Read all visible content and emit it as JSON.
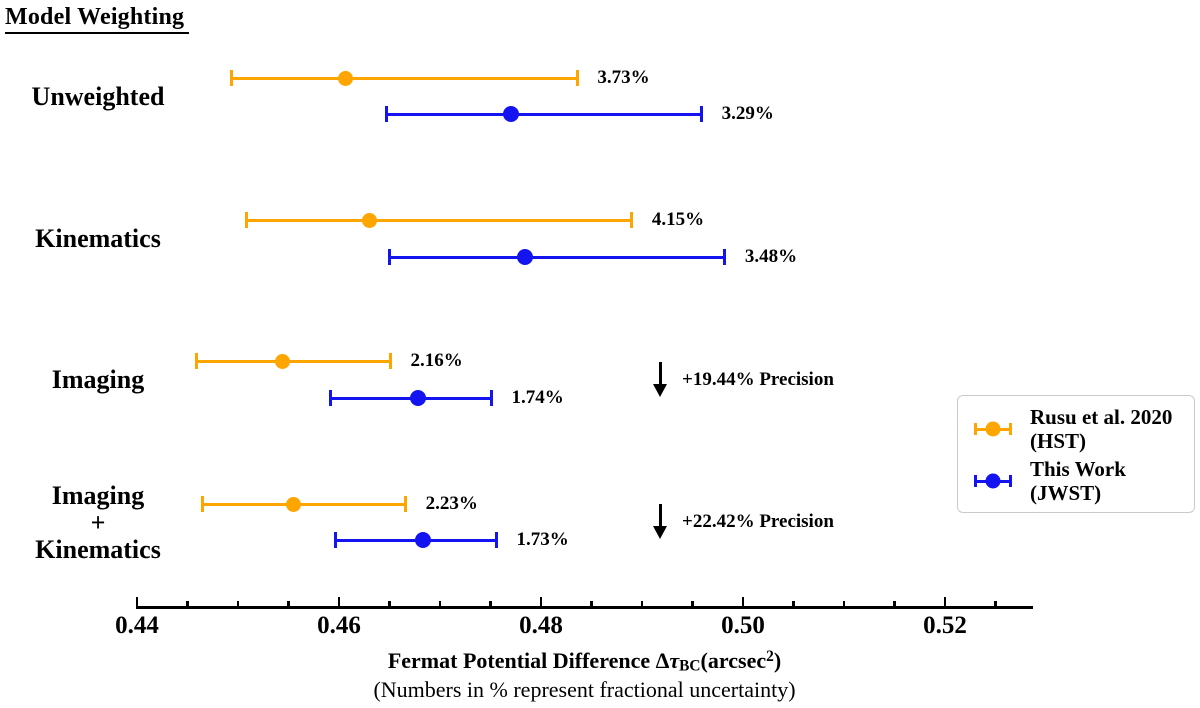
{
  "header": {
    "title": "Model Weighting"
  },
  "chart_data": {
    "type": "scatter",
    "subtype": "horizontal-errorbar",
    "title": "Model Weighting",
    "categories": [
      "Unweighted",
      "Kinematics",
      "Imaging",
      "Imaging + Kinematics"
    ],
    "category_display_lines": [
      [
        "Unweighted"
      ],
      [
        "Kinematics"
      ],
      [
        "Imaging"
      ],
      [
        "Imaging",
        "+",
        "Kinematics"
      ]
    ],
    "series": [
      {
        "name": "Rusu et al. 2020 (HST)",
        "color": "#FFA500",
        "points": [
          {
            "category": "Unweighted",
            "x": 0.4606,
            "err_minus": 0.0112,
            "err_plus": 0.023,
            "label": "3.73%"
          },
          {
            "category": "Kinematics",
            "x": 0.463,
            "err_minus": 0.0122,
            "err_plus": 0.026,
            "label": "4.15%"
          },
          {
            "category": "Imaging",
            "x": 0.4544,
            "err_minus": 0.0085,
            "err_plus": 0.0107,
            "label": "2.16%"
          },
          {
            "category": "Imaging + Kinematics",
            "x": 0.4555,
            "err_minus": 0.009,
            "err_plus": 0.0111,
            "label": "2.23%"
          }
        ]
      },
      {
        "name": "This Work (JWST)",
        "color": "#1414F0",
        "points": [
          {
            "category": "Unweighted",
            "x": 0.477,
            "err_minus": 0.0123,
            "err_plus": 0.0189,
            "label": "3.29%"
          },
          {
            "category": "Kinematics",
            "x": 0.4784,
            "err_minus": 0.0134,
            "err_plus": 0.0198,
            "label": "3.48%"
          },
          {
            "category": "Imaging",
            "x": 0.4678,
            "err_minus": 0.0086,
            "err_plus": 0.0073,
            "label": "1.74%"
          },
          {
            "category": "Imaging + Kinematics",
            "x": 0.4683,
            "err_minus": 0.0086,
            "err_plus": 0.0073,
            "label": "1.73%"
          }
        ]
      }
    ],
    "annotations": [
      {
        "row_index": 2,
        "icon": "down-arrow",
        "text": "+19.44% Precision"
      },
      {
        "row_index": 3,
        "icon": "down-arrow",
        "text": "+22.42% Precision"
      }
    ],
    "xlabel_plain": "Fermat Potential Difference Δτ_BC(arcsec^2)",
    "xlabel_parts": {
      "main": "Fermat Potential Difference Δ",
      "tau": "τ",
      "sub": "BC",
      "open": "(arcsec",
      "sup": "2",
      "close": ")"
    },
    "xlabel_note": "(Numbers in % represent fractional uncertainty)",
    "x_ticks": [
      0.44,
      0.46,
      0.48,
      0.5,
      0.52
    ],
    "x_tick_labels": [
      "0.44",
      "0.46",
      "0.48",
      "0.50",
      "0.52"
    ],
    "x_minor_tick_step": 0.005,
    "xlim": [
      0.4399,
      0.5287
    ],
    "grid": false,
    "legend": {
      "position": "center-right",
      "entries": [
        {
          "name": "Rusu et al. 2020 (HST)",
          "label_lines": [
            "Rusu et al. 2020",
            "(HST)"
          ],
          "color": "#FFA500"
        },
        {
          "name": "This Work (JWST)",
          "label_lines": [
            "This Work",
            "(JWST)"
          ],
          "color": "#1414F0"
        }
      ]
    }
  }
}
